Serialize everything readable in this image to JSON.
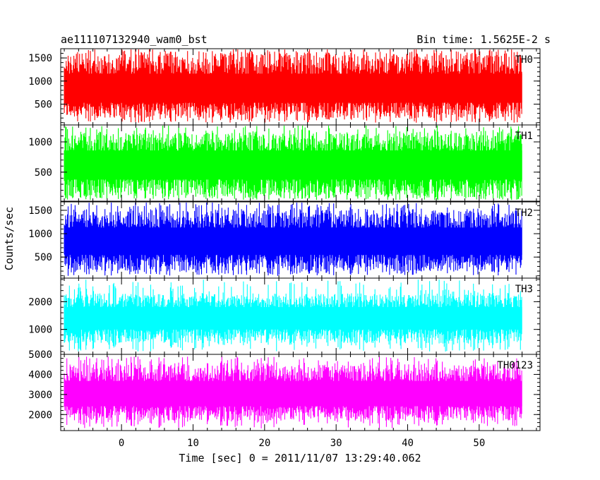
{
  "header": {
    "title": "ae111107132940_wam0_bst",
    "bin_time": "Bin time: 1.5625E-2 s"
  },
  "chart_data": {
    "type": "line",
    "title": "ae111107132940_wam0_bst",
    "subtitle": "Bin time: 1.5625E-2 s",
    "xlabel": "Time [sec] 0 = 2011/11/07 13:29:40.062",
    "ylabel": "Counts/sec",
    "xlim": [
      -8.5,
      58.5
    ],
    "data_xrange": [
      -8.0,
      56.0
    ],
    "xticks": [
      0,
      10,
      20,
      30,
      40,
      50
    ],
    "grid": false,
    "panels": [
      {
        "name": "TH0",
        "color": "#ff0000",
        "ylim": [
          50,
          1700
        ],
        "yticks": [
          500,
          1000,
          1500
        ],
        "mean": 800,
        "band": [
          200,
          1600
        ],
        "spike_range": [
          100,
          1700
        ]
      },
      {
        "name": "TH1",
        "color": "#00ff00",
        "ylim": [
          20,
          1280
        ],
        "yticks": [
          500,
          1000
        ],
        "mean": 620,
        "band": [
          80,
          1150
        ],
        "spike_range": [
          40,
          1280
        ]
      },
      {
        "name": "TH2",
        "color": "#0000ff",
        "ylim": [
          50,
          1680
        ],
        "yticks": [
          500,
          1000,
          1500
        ],
        "mean": 830,
        "band": [
          200,
          1500
        ],
        "spike_range": [
          100,
          1680
        ]
      },
      {
        "name": "TH3",
        "color": "#00ffff",
        "ylim": [
          100,
          2850
        ],
        "yticks": [
          1000,
          2000
        ],
        "mean": 1400,
        "band": [
          500,
          2300
        ],
        "spike_range": [
          200,
          2800
        ]
      },
      {
        "name": "TH0123",
        "color": "#ff00ff",
        "ylim": [
          1200,
          5000
        ],
        "yticks": [
          2000,
          3000,
          4000,
          5000
        ],
        "mean": 3000,
        "band": [
          1700,
          4500
        ],
        "spike_range": [
          1300,
          4900
        ]
      }
    ]
  }
}
